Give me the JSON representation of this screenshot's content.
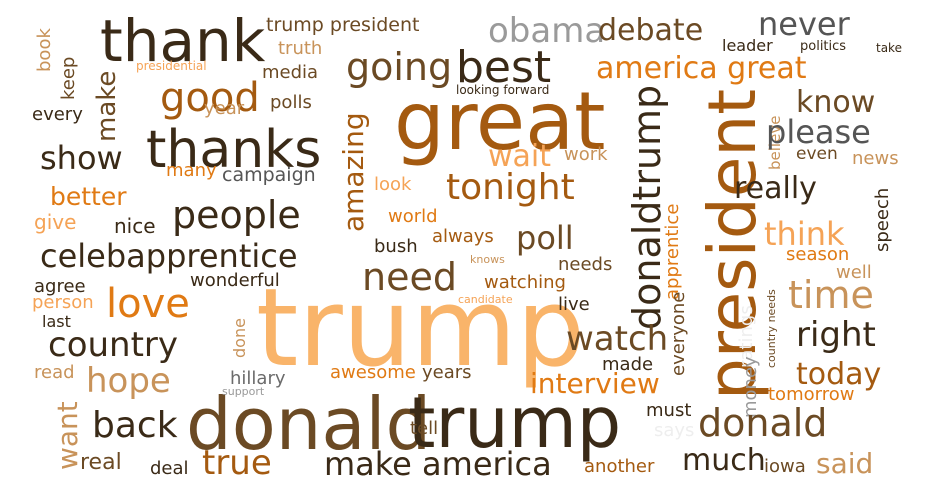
{
  "palette": {
    "dark_brown": "#3a2a17",
    "brown": "#6b4a24",
    "rust": "#a45a10",
    "orange": "#e07a14",
    "light_orange": "#f5a356",
    "peach": "#f9b46a",
    "tan": "#c8935a",
    "gray": "#9a9a9a",
    "dark_gray": "#555555"
  },
  "words": {
    "trump_big": "trump",
    "donald": "donald",
    "trump2": "trump",
    "great": "great",
    "thank": "thank",
    "thanks": "thanks",
    "president": "president",
    "people": "people",
    "celebapprentice": "celebapprentice",
    "love": "love",
    "country": "country",
    "best": "best",
    "going": "going",
    "good": "good",
    "show": "show",
    "make": "make",
    "tonight": "tonight",
    "need": "need",
    "time": "time",
    "know": "know",
    "please": "please",
    "never": "never",
    "america_great": "america great",
    "obama": "obama",
    "debate": "debate",
    "really": "really",
    "donaldtrump": "donaldtrump",
    "poll": "poll",
    "think": "think",
    "right": "right",
    "today": "today",
    "watch": "watch",
    "interview": "interview",
    "make_america": "make america",
    "true": "true",
    "back": "back",
    "hope": "hope",
    "want": "want",
    "donald2": "donald",
    "said": "said",
    "much": "much",
    "amazing": "amazing",
    "trump_president": "trump president",
    "truth": "truth",
    "media": "media",
    "polls": "polls",
    "year": "year",
    "campaign": "campaign",
    "many": "many",
    "better": "better",
    "nice": "nice",
    "give": "give",
    "every": "every",
    "book": "book",
    "keep": "keep",
    "presidential": "presidential",
    "wait": "wait",
    "work": "work",
    "look": "look",
    "world": "world",
    "always": "always",
    "bush": "bush",
    "knows": "knows",
    "watching": "watching",
    "needs": "needs",
    "live": "live",
    "candidate": "candidate",
    "apprentice": "apprentice",
    "everyone": "everyone",
    "ratings": "ratings",
    "money": "money",
    "country_needs": "country needs",
    "believe": "believe",
    "even": "even",
    "news": "news",
    "speech": "speech",
    "season": "season",
    "well": "well",
    "tomorrow": "tomorrow",
    "leader": "leader",
    "politics": "politics",
    "take": "take",
    "looking_forward": "looking forward",
    "wonderful": "wonderful",
    "agree": "agree",
    "person": "person",
    "last": "last",
    "done": "done",
    "read": "read",
    "hillary": "hillary",
    "support": "support",
    "awesome": "awesome",
    "years": "years",
    "made": "made",
    "must": "must",
    "says": "says",
    "tell": "tell",
    "real": "real",
    "deal": "deal",
    "another": "another",
    "iowa": "iowa"
  }
}
